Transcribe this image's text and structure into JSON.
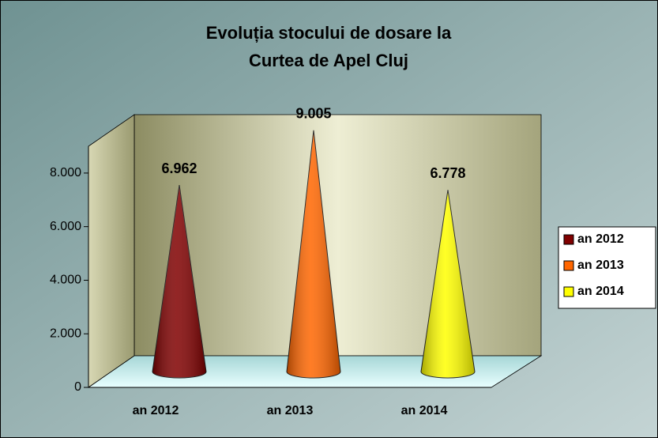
{
  "chart_data": {
    "type": "cone",
    "title": [
      "Evoluția stocului de dosare la",
      "Curtea de Apel Cluj"
    ],
    "categories": [
      "an 2012",
      "an 2013",
      "an 2014"
    ],
    "values": [
      6962,
      9005,
      6778
    ],
    "value_labels": [
      "6.962",
      "9.005",
      "6.778"
    ],
    "colors": [
      "#800000",
      "#ff6600",
      "#ffff00"
    ],
    "ylim": [
      0,
      9000
    ],
    "yticks": [
      0,
      {
        "value": 2000,
        "label": "2.000"
      },
      {
        "value": 4000,
        "label": "4.000"
      },
      {
        "value": 6000,
        "label": "6.000"
      },
      {
        "value": 8000,
        "label": "8.000"
      }
    ],
    "grid": false,
    "legend": "right"
  }
}
